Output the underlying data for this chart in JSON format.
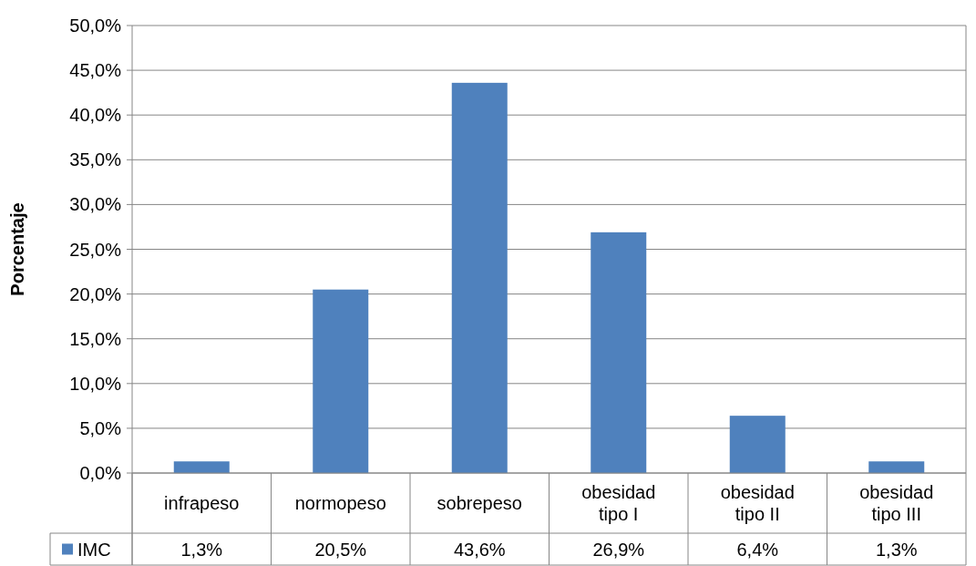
{
  "chart_data": {
    "type": "bar",
    "ylabel": "Porcentaje",
    "categories": [
      "infrapeso",
      "normopeso",
      "sobrepeso",
      "obesidad tipo I",
      "obesidad tipo II",
      "obesidad tipo III"
    ],
    "series": [
      {
        "name": "IMC",
        "color": "#4f81bd",
        "values": [
          1.3,
          20.5,
          43.6,
          26.9,
          6.4,
          1.3
        ],
        "value_labels": [
          "1,3%",
          "20,5%",
          "43,6%",
          "26,9%",
          "6,4%",
          "1,3%"
        ]
      }
    ],
    "ylim": [
      0,
      50
    ],
    "yticks": [
      {
        "value": 0,
        "label": "0,0%"
      },
      {
        "value": 5,
        "label": "5,0%"
      },
      {
        "value": 10,
        "label": "10,0%"
      },
      {
        "value": 15,
        "label": "15,0%"
      },
      {
        "value": 20,
        "label": "20,0%"
      },
      {
        "value": 25,
        "label": "25,0%"
      },
      {
        "value": 30,
        "label": "30,0%"
      },
      {
        "value": 35,
        "label": "35,0%"
      },
      {
        "value": 40,
        "label": "40,0%"
      },
      {
        "value": 45,
        "label": "45,0%"
      },
      {
        "value": 50,
        "label": "50,0%"
      }
    ],
    "grid": "y",
    "legend": "bottom left"
  }
}
